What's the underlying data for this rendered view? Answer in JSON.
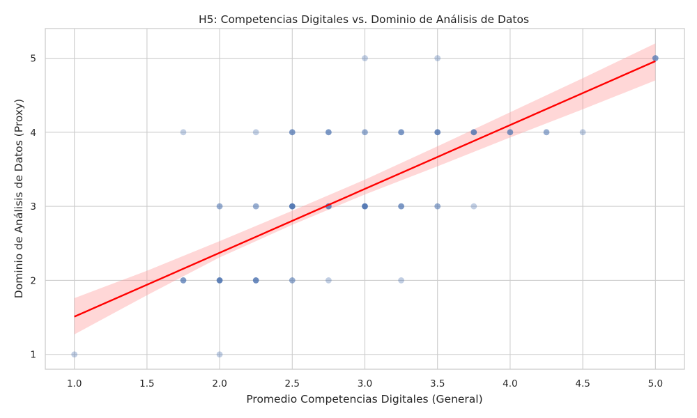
{
  "chart_data": {
    "type": "scatter",
    "title": "H5: Competencias Digitales vs. Dominio de Análisis de Datos",
    "xlabel": "Promedio Competencias Digitales (General)",
    "ylabel": "Dominio de Análisis de Datos (Proxy)",
    "xlim": [
      0.8,
      5.2
    ],
    "ylim": [
      0.8,
      5.4
    ],
    "xticks": [
      1.0,
      1.5,
      2.0,
      2.5,
      3.0,
      3.5,
      4.0,
      4.5,
      5.0
    ],
    "xtick_labels": [
      "1.0",
      "1.5",
      "2.0",
      "2.5",
      "3.0",
      "3.5",
      "4.0",
      "4.5",
      "5.0"
    ],
    "yticks": [
      1,
      2,
      3,
      4,
      5
    ],
    "ytick_labels": [
      "1",
      "2",
      "3",
      "4",
      "5"
    ],
    "grid": true,
    "point_color": "#4c72b0",
    "point_alpha": 0.35,
    "line_color": "#ff0000",
    "band_color": "#ff9a9a",
    "points": [
      {
        "x": 1.0,
        "y": 1,
        "n": 1
      },
      {
        "x": 2.0,
        "y": 1,
        "n": 1
      },
      {
        "x": 1.75,
        "y": 2,
        "n": 3
      },
      {
        "x": 2.0,
        "y": 2,
        "n": 5
      },
      {
        "x": 2.25,
        "y": 2,
        "n": 4
      },
      {
        "x": 2.5,
        "y": 2,
        "n": 2
      },
      {
        "x": 2.75,
        "y": 2,
        "n": 1
      },
      {
        "x": 3.25,
        "y": 2,
        "n": 1
      },
      {
        "x": 2.0,
        "y": 3,
        "n": 2
      },
      {
        "x": 2.25,
        "y": 3,
        "n": 2
      },
      {
        "x": 2.5,
        "y": 3,
        "n": 6
      },
      {
        "x": 2.75,
        "y": 3,
        "n": 4
      },
      {
        "x": 3.0,
        "y": 3,
        "n": 6
      },
      {
        "x": 3.25,
        "y": 3,
        "n": 3
      },
      {
        "x": 3.5,
        "y": 3,
        "n": 2
      },
      {
        "x": 3.75,
        "y": 3,
        "n": 1
      },
      {
        "x": 1.75,
        "y": 4,
        "n": 1
      },
      {
        "x": 2.25,
        "y": 4,
        "n": 1
      },
      {
        "x": 2.5,
        "y": 4,
        "n": 3
      },
      {
        "x": 2.75,
        "y": 4,
        "n": 3
      },
      {
        "x": 3.0,
        "y": 4,
        "n": 2
      },
      {
        "x": 3.25,
        "y": 4,
        "n": 3
      },
      {
        "x": 3.5,
        "y": 4,
        "n": 4
      },
      {
        "x": 3.75,
        "y": 4,
        "n": 4
      },
      {
        "x": 4.0,
        "y": 4,
        "n": 3
      },
      {
        "x": 4.25,
        "y": 4,
        "n": 2
      },
      {
        "x": 4.5,
        "y": 4,
        "n": 1
      },
      {
        "x": 3.0,
        "y": 5,
        "n": 1
      },
      {
        "x": 3.5,
        "y": 5,
        "n": 1
      },
      {
        "x": 5.0,
        "y": 5,
        "n": 3
      }
    ],
    "regression": {
      "x_start": 1.0,
      "y_start": 1.51,
      "x_end": 5.0,
      "y_end": 4.96,
      "band": [
        {
          "x": 1.0,
          "lo": 1.27,
          "hi": 1.76
        },
        {
          "x": 1.5,
          "lo": 1.8,
          "hi": 2.13
        },
        {
          "x": 2.0,
          "lo": 2.31,
          "hi": 2.53
        },
        {
          "x": 2.5,
          "lo": 2.75,
          "hi": 2.94
        },
        {
          "x": 3.0,
          "lo": 3.16,
          "hi": 3.36
        },
        {
          "x": 3.5,
          "lo": 3.54,
          "hi": 3.81
        },
        {
          "x": 4.0,
          "lo": 3.93,
          "hi": 4.27
        },
        {
          "x": 4.5,
          "lo": 4.31,
          "hi": 4.73
        },
        {
          "x": 5.0,
          "lo": 4.7,
          "hi": 5.2
        }
      ]
    }
  }
}
